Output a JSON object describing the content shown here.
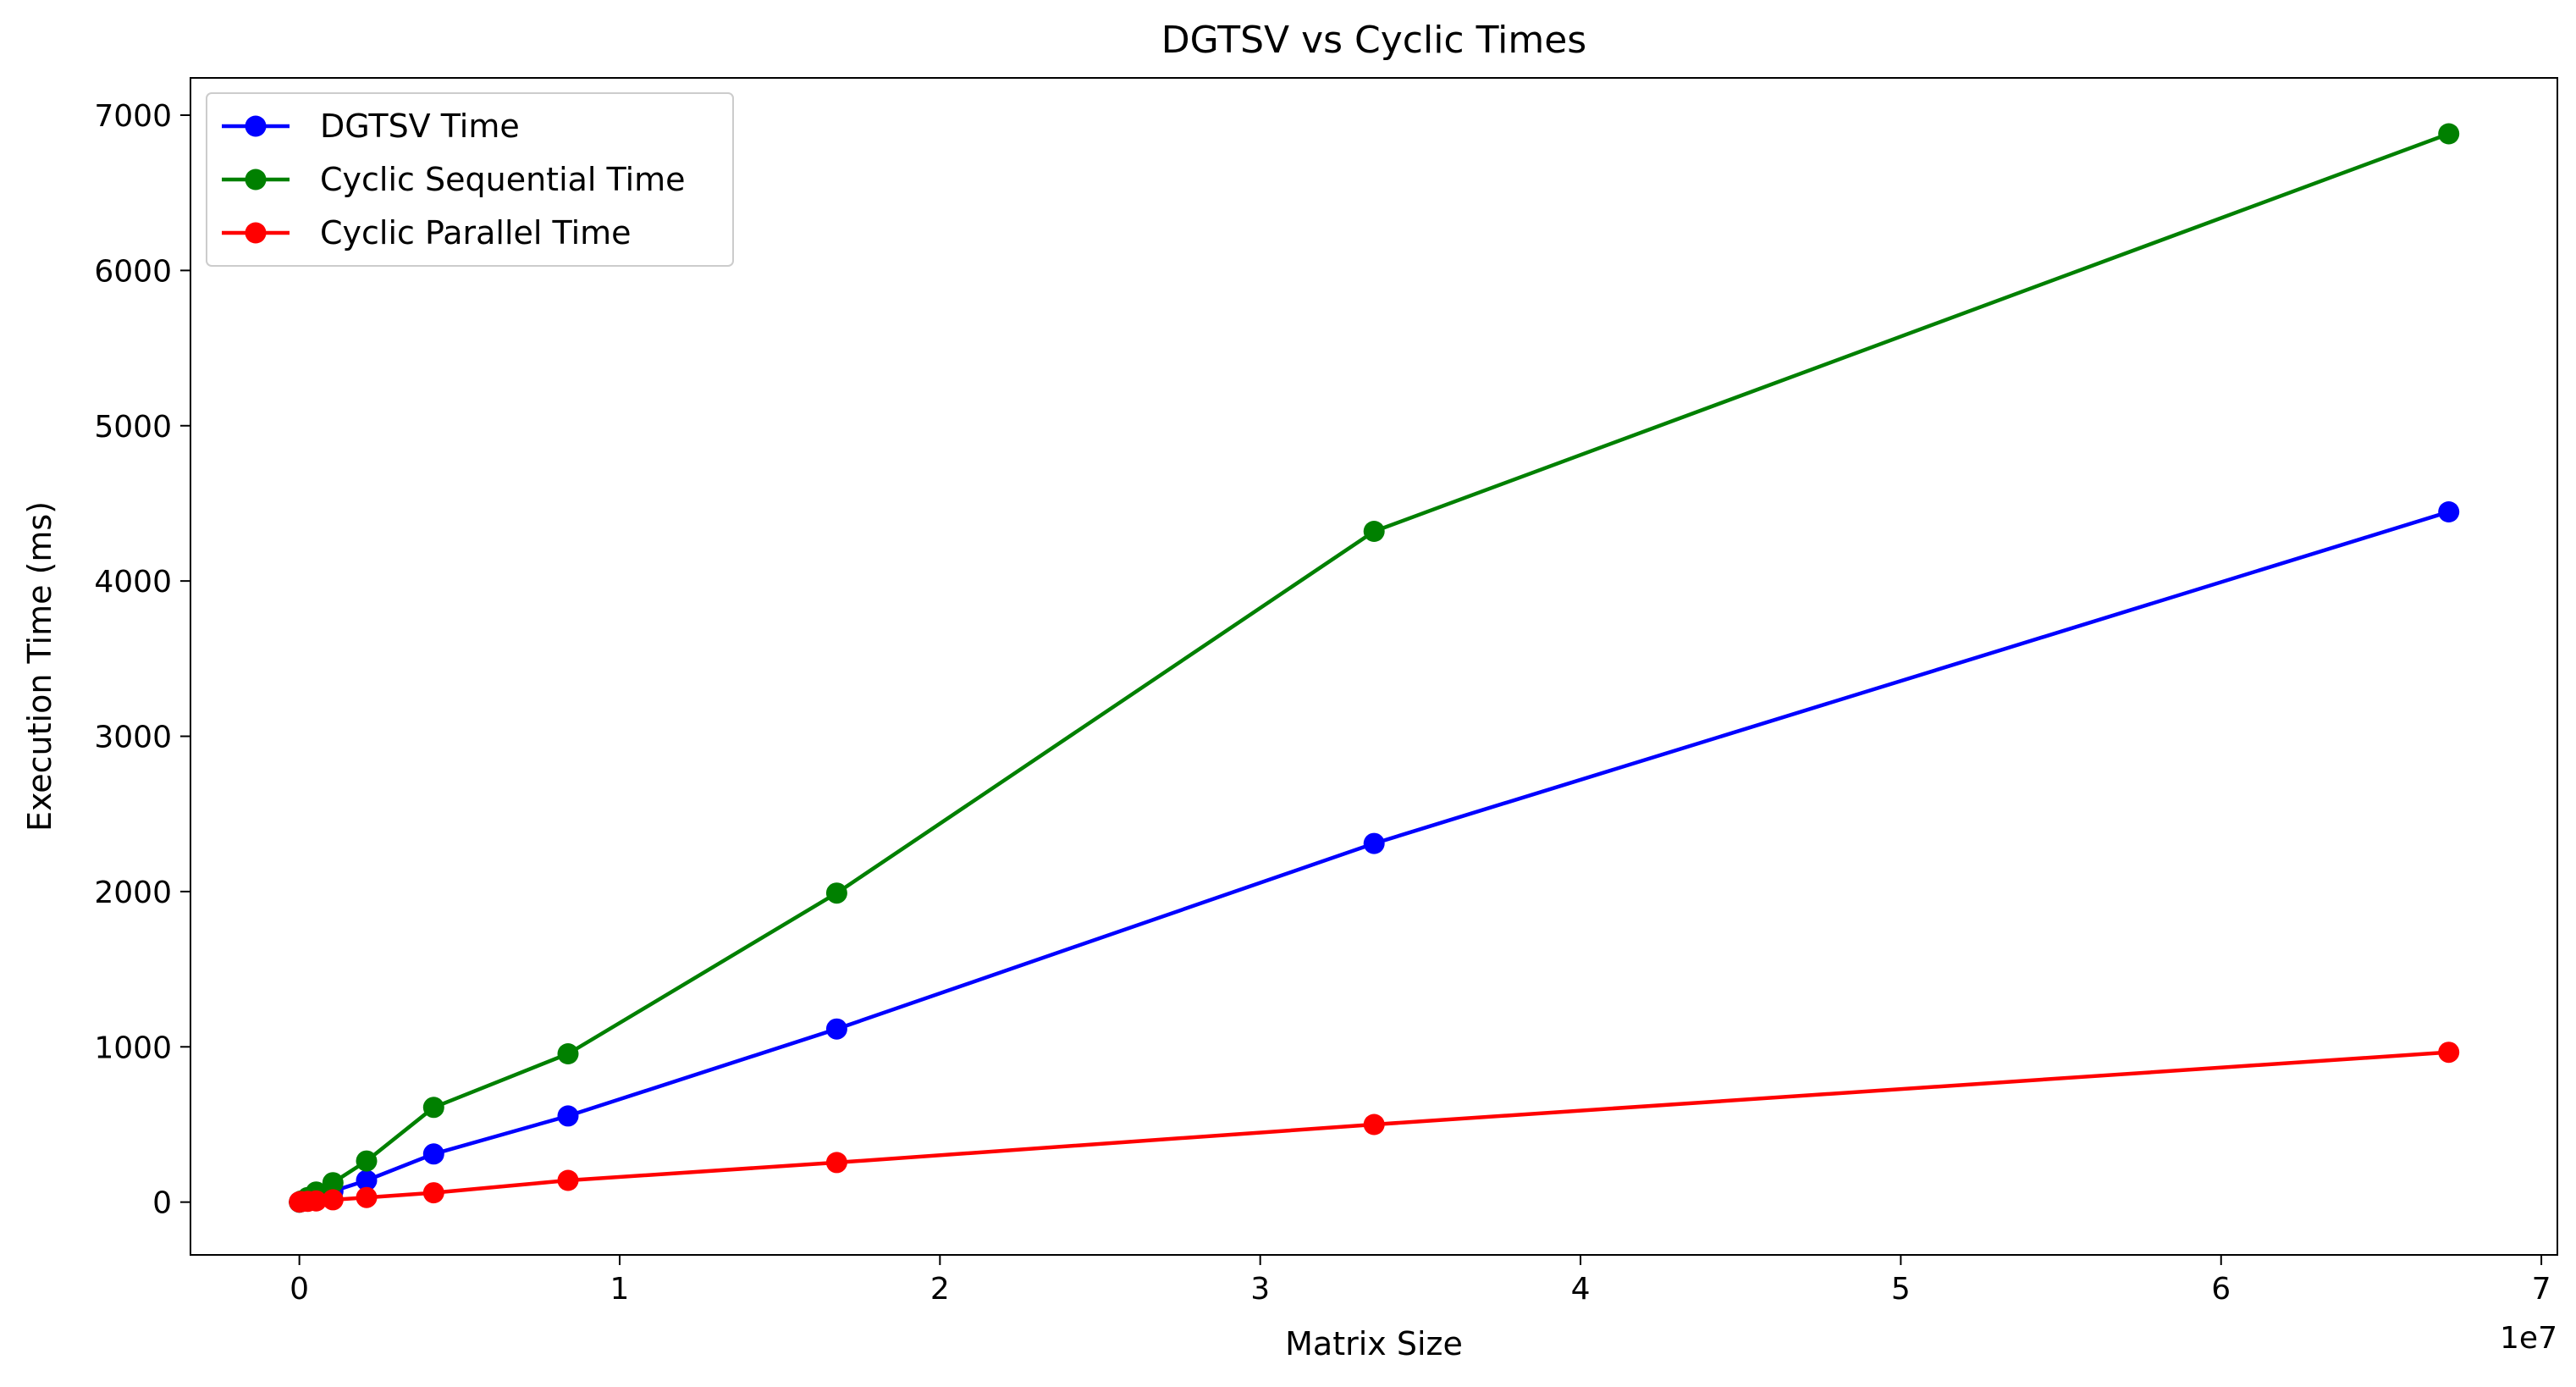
{
  "chart_data": {
    "type": "line",
    "title": "DGTSV vs Cyclic Times",
    "xlabel": "Matrix Size",
    "ylabel": "Execution Time (ms)",
    "x_offset_label": "1e7",
    "x_scale": 10000000,
    "xlim": [
      -0.34,
      7.05
    ],
    "ylim": [
      -340,
      7240
    ],
    "xticks": [
      0,
      1,
      2,
      3,
      4,
      5,
      6,
      7
    ],
    "xtick_labels": [
      "0",
      "1",
      "2",
      "3",
      "4",
      "5",
      "6",
      "7"
    ],
    "yticks": [
      0,
      1000,
      2000,
      3000,
      4000,
      5000,
      6000,
      7000
    ],
    "ytick_labels": [
      "0",
      "1000",
      "2000",
      "3000",
      "4000",
      "5000",
      "6000",
      "7000"
    ],
    "grid": false,
    "legend_position": "top-left",
    "marker": "circle",
    "x": [
      1024,
      8192,
      65536,
      262144,
      524288,
      1048576,
      2097152,
      4194304,
      8388608,
      16777216,
      33554432,
      67108864
    ],
    "series": [
      {
        "name": "DGTSV Time",
        "color": "#0000ff",
        "values": [
          0,
          1,
          4,
          15,
          35,
          70,
          140,
          310,
          555,
          1115,
          2310,
          4445
        ]
      },
      {
        "name": "Cyclic Sequential Time",
        "color": "#008000",
        "values": [
          0,
          2,
          8,
          30,
          65,
          125,
          265,
          610,
          955,
          1990,
          4320,
          6880
        ]
      },
      {
        "name": "Cyclic Parallel Time",
        "color": "#ff0000",
        "values": [
          1,
          2,
          3,
          5,
          8,
          15,
          30,
          60,
          140,
          255,
          500,
          965
        ]
      }
    ]
  }
}
